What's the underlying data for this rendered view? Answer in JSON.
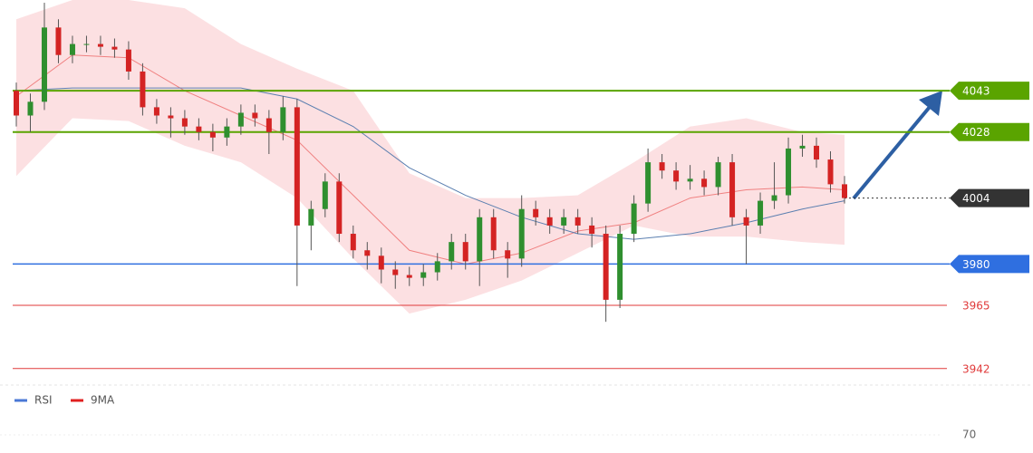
{
  "chart_data": {
    "type": "candlestick",
    "ylim": [
      3936,
      4076
    ],
    "up_color": "#2f8f2f",
    "down_color": "#d42323",
    "open": [
      4043,
      4034,
      4039,
      4066,
      4056,
      4060,
      4060,
      4059,
      4058,
      4050,
      4037,
      4034,
      4033,
      4030,
      4028,
      4026,
      4030,
      4035,
      4033,
      4028,
      4037,
      3994,
      4000,
      4010,
      3991,
      3985,
      3983,
      3978,
      3976,
      3975,
      3977,
      3981,
      3988,
      3981,
      3997,
      3985,
      3982,
      4000,
      3997,
      3994,
      3997,
      3994,
      3991,
      3967,
      3991,
      4002,
      4017,
      4014,
      4010,
      4011,
      4008,
      4017,
      3997,
      3994,
      4003,
      4005,
      4022,
      4023,
      4018,
      4009
    ],
    "high": [
      4046,
      4042,
      4075,
      4069,
      4063,
      4063,
      4063,
      4062,
      4061,
      4053,
      4040,
      4037,
      4036,
      4033,
      4031,
      4033,
      4038,
      4038,
      4036,
      4041,
      4040,
      4003,
      4013,
      4013,
      3994,
      3988,
      3986,
      3981,
      3979,
      3980,
      3984,
      3991,
      3991,
      4000,
      4000,
      3988,
      4005,
      4003,
      4000,
      4000,
      4000,
      3997,
      3994,
      3994,
      4005,
      4022,
      4020,
      4017,
      4016,
      4014,
      4019,
      4020,
      4000,
      4006,
      4017,
      4026,
      4027,
      4026,
      4021,
      4012
    ],
    "low": [
      4030,
      4028,
      4036,
      4053,
      4053,
      4057,
      4056,
      4055,
      4047,
      4034,
      4031,
      4026,
      4027,
      4025,
      4021,
      4023,
      4027,
      4030,
      4020,
      4025,
      3972,
      3985,
      3997,
      3988,
      3982,
      3978,
      3973,
      3971,
      3972,
      3972,
      3974,
      3978,
      3978,
      3972,
      3982,
      3975,
      3979,
      3994,
      3991,
      3991,
      3991,
      3986,
      3959,
      3964,
      3988,
      3999,
      4011,
      4007,
      4007,
      4005,
      4005,
      3994,
      3980,
      3991,
      4000,
      4002,
      4019,
      4015,
      4006,
      4002
    ],
    "close": [
      4034,
      4039,
      4066,
      4056,
      4060,
      4060,
      4059,
      4058,
      4050,
      4037,
      4034,
      4033,
      4030,
      4028,
      4026,
      4030,
      4035,
      4033,
      4028,
      4037,
      3994,
      4000,
      4010,
      3991,
      3985,
      3983,
      3978,
      3976,
      3975,
      3977,
      3981,
      3988,
      3981,
      3997,
      3985,
      3982,
      4000,
      3997,
      3994,
      3997,
      3994,
      3991,
      3967,
      3991,
      4002,
      4017,
      4014,
      4010,
      4011,
      4008,
      4017,
      3997,
      3994,
      4003,
      4005,
      4022,
      4023,
      4018,
      4009,
      4004
    ],
    "overlay_x": [
      0,
      4,
      8,
      12,
      16,
      20,
      24,
      28,
      32,
      36,
      40,
      44,
      48,
      52,
      56,
      59
    ],
    "band_color": "#fbd6d8",
    "band_upper": [
      4069,
      4076,
      4076,
      4073,
      4060,
      4051,
      4043,
      4013,
      4004,
      4004,
      4005,
      4017,
      4030,
      4033,
      4028,
      4027
    ],
    "band_lower": [
      4012,
      4033,
      4032,
      4023,
      4017,
      4004,
      3982,
      3962,
      3967,
      3974,
      3984,
      3994,
      3990,
      3990,
      3988,
      3987
    ],
    "ma": {
      "color": "#f08080",
      "values": [
        4041,
        4056,
        4055,
        4043,
        4034,
        4025,
        4005,
        3985,
        3980,
        3984,
        3992,
        3995,
        4004,
        4007,
        4008,
        4007
      ]
    },
    "ma_long": {
      "color": "#5b7fb0",
      "values": [
        4043,
        4044,
        4044,
        4044,
        4044,
        4040,
        4030,
        4015,
        4005,
        3997,
        3991,
        3989,
        3991,
        3995,
        4000,
        4003
      ]
    },
    "levels": [
      {
        "value": 4043,
        "color": "#5aa400",
        "tag": true
      },
      {
        "value": 4028,
        "color": "#5aa400",
        "tag": true
      },
      {
        "value": 4004,
        "color": "#333333",
        "tag": true,
        "dotted": true
      },
      {
        "value": 3980,
        "color": "#2f6fe0",
        "tag": true
      },
      {
        "value": 3965,
        "color": "#e03a3a",
        "tag": false
      },
      {
        "value": 3942,
        "color": "#e03a3a",
        "tag": false
      }
    ],
    "legend": [
      {
        "label": "RSI",
        "color": "#4a78d6"
      },
      {
        "label": "9MA",
        "color": "#e02020"
      }
    ],
    "rsi_yticks": [
      70
    ]
  }
}
